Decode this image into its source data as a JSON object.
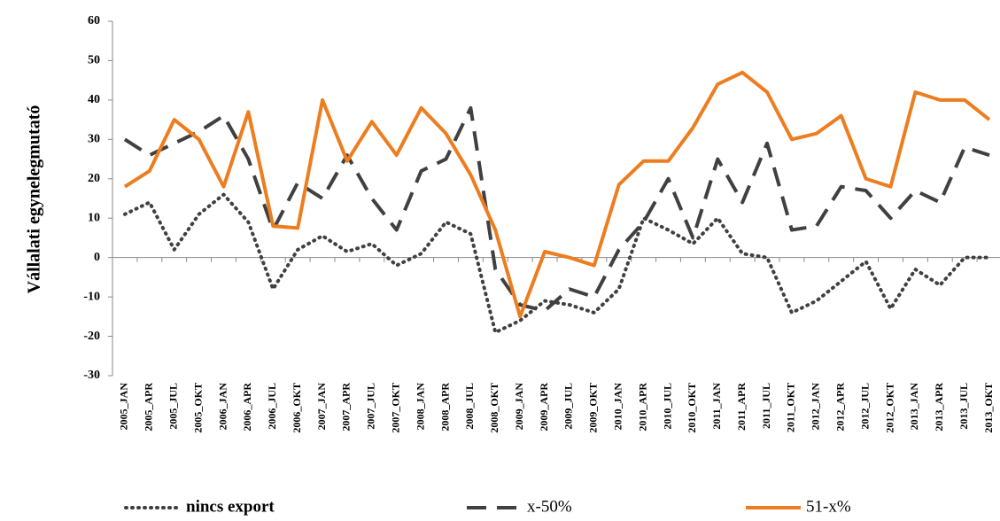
{
  "chart_data": {
    "type": "line",
    "y_label": "Vállalati egynelegmutató",
    "categories": [
      "2005_JAN",
      "2005_APR",
      "2005_JUL",
      "2005_OKT",
      "2006_JAN",
      "2006_APR",
      "2006_JUL",
      "2006_OKT",
      "2007_JAN",
      "2007_APR",
      "2007_JUL",
      "2007_OKT",
      "2008_JAN",
      "2008_APR",
      "2008_JUL",
      "2008_OKT",
      "2009_JAN",
      "2009_APR",
      "2009_JUL",
      "2009_OKT",
      "2010_JAN",
      "2010_APR",
      "2010_JUL",
      "2010_OKT",
      "2011_JAN",
      "2011_APR",
      "2011_JUL",
      "2011_OKT",
      "2012_JAN",
      "2012_APR",
      "2012_JUL",
      "2012_OKT",
      "2013_JAN",
      "2013_APR",
      "2013_JUL",
      "2013_OKT"
    ],
    "series": [
      {
        "name": "nincs export",
        "color": "#404040",
        "style": "dotted",
        "values": [
          11,
          14,
          2,
          11,
          16,
          9,
          -8,
          2,
          5.5,
          1.5,
          3.5,
          -2,
          1,
          9,
          6,
          -19,
          -16,
          -11,
          -12,
          -14,
          -8,
          10,
          7,
          3.5,
          10,
          1,
          0,
          -14,
          -11,
          -6,
          -1,
          -13,
          -3,
          -7,
          0,
          0
        ]
      },
      {
        "name": "x-50%",
        "color": "#404040",
        "style": "dashed",
        "values": [
          30,
          26,
          29,
          32,
          36,
          25,
          7,
          19,
          15,
          26,
          15,
          7,
          22,
          25,
          38,
          -3,
          -12,
          -13.5,
          -8,
          -10,
          2,
          9,
          20,
          5,
          25,
          14,
          29,
          7,
          8,
          18,
          17,
          10,
          17,
          14,
          28,
          26
        ]
      },
      {
        "name": "51-x%",
        "color": "#ed7d1f",
        "style": "solid",
        "values": [
          18,
          22,
          35,
          30,
          18,
          37,
          8,
          7.5,
          40,
          24.5,
          34.5,
          26,
          38,
          31.5,
          21,
          7,
          -15,
          1.5,
          0,
          -2,
          18.5,
          24.5,
          24.5,
          33,
          44,
          47,
          42,
          30,
          31.5,
          36,
          20,
          18,
          42,
          40,
          40,
          35
        ]
      }
    ],
    "ylim": [
      -30,
      60
    ],
    "yticks": [
      -30,
      -20,
      -10,
      0,
      10,
      20,
      30,
      40,
      50,
      60
    ],
    "legend": "bottom"
  }
}
